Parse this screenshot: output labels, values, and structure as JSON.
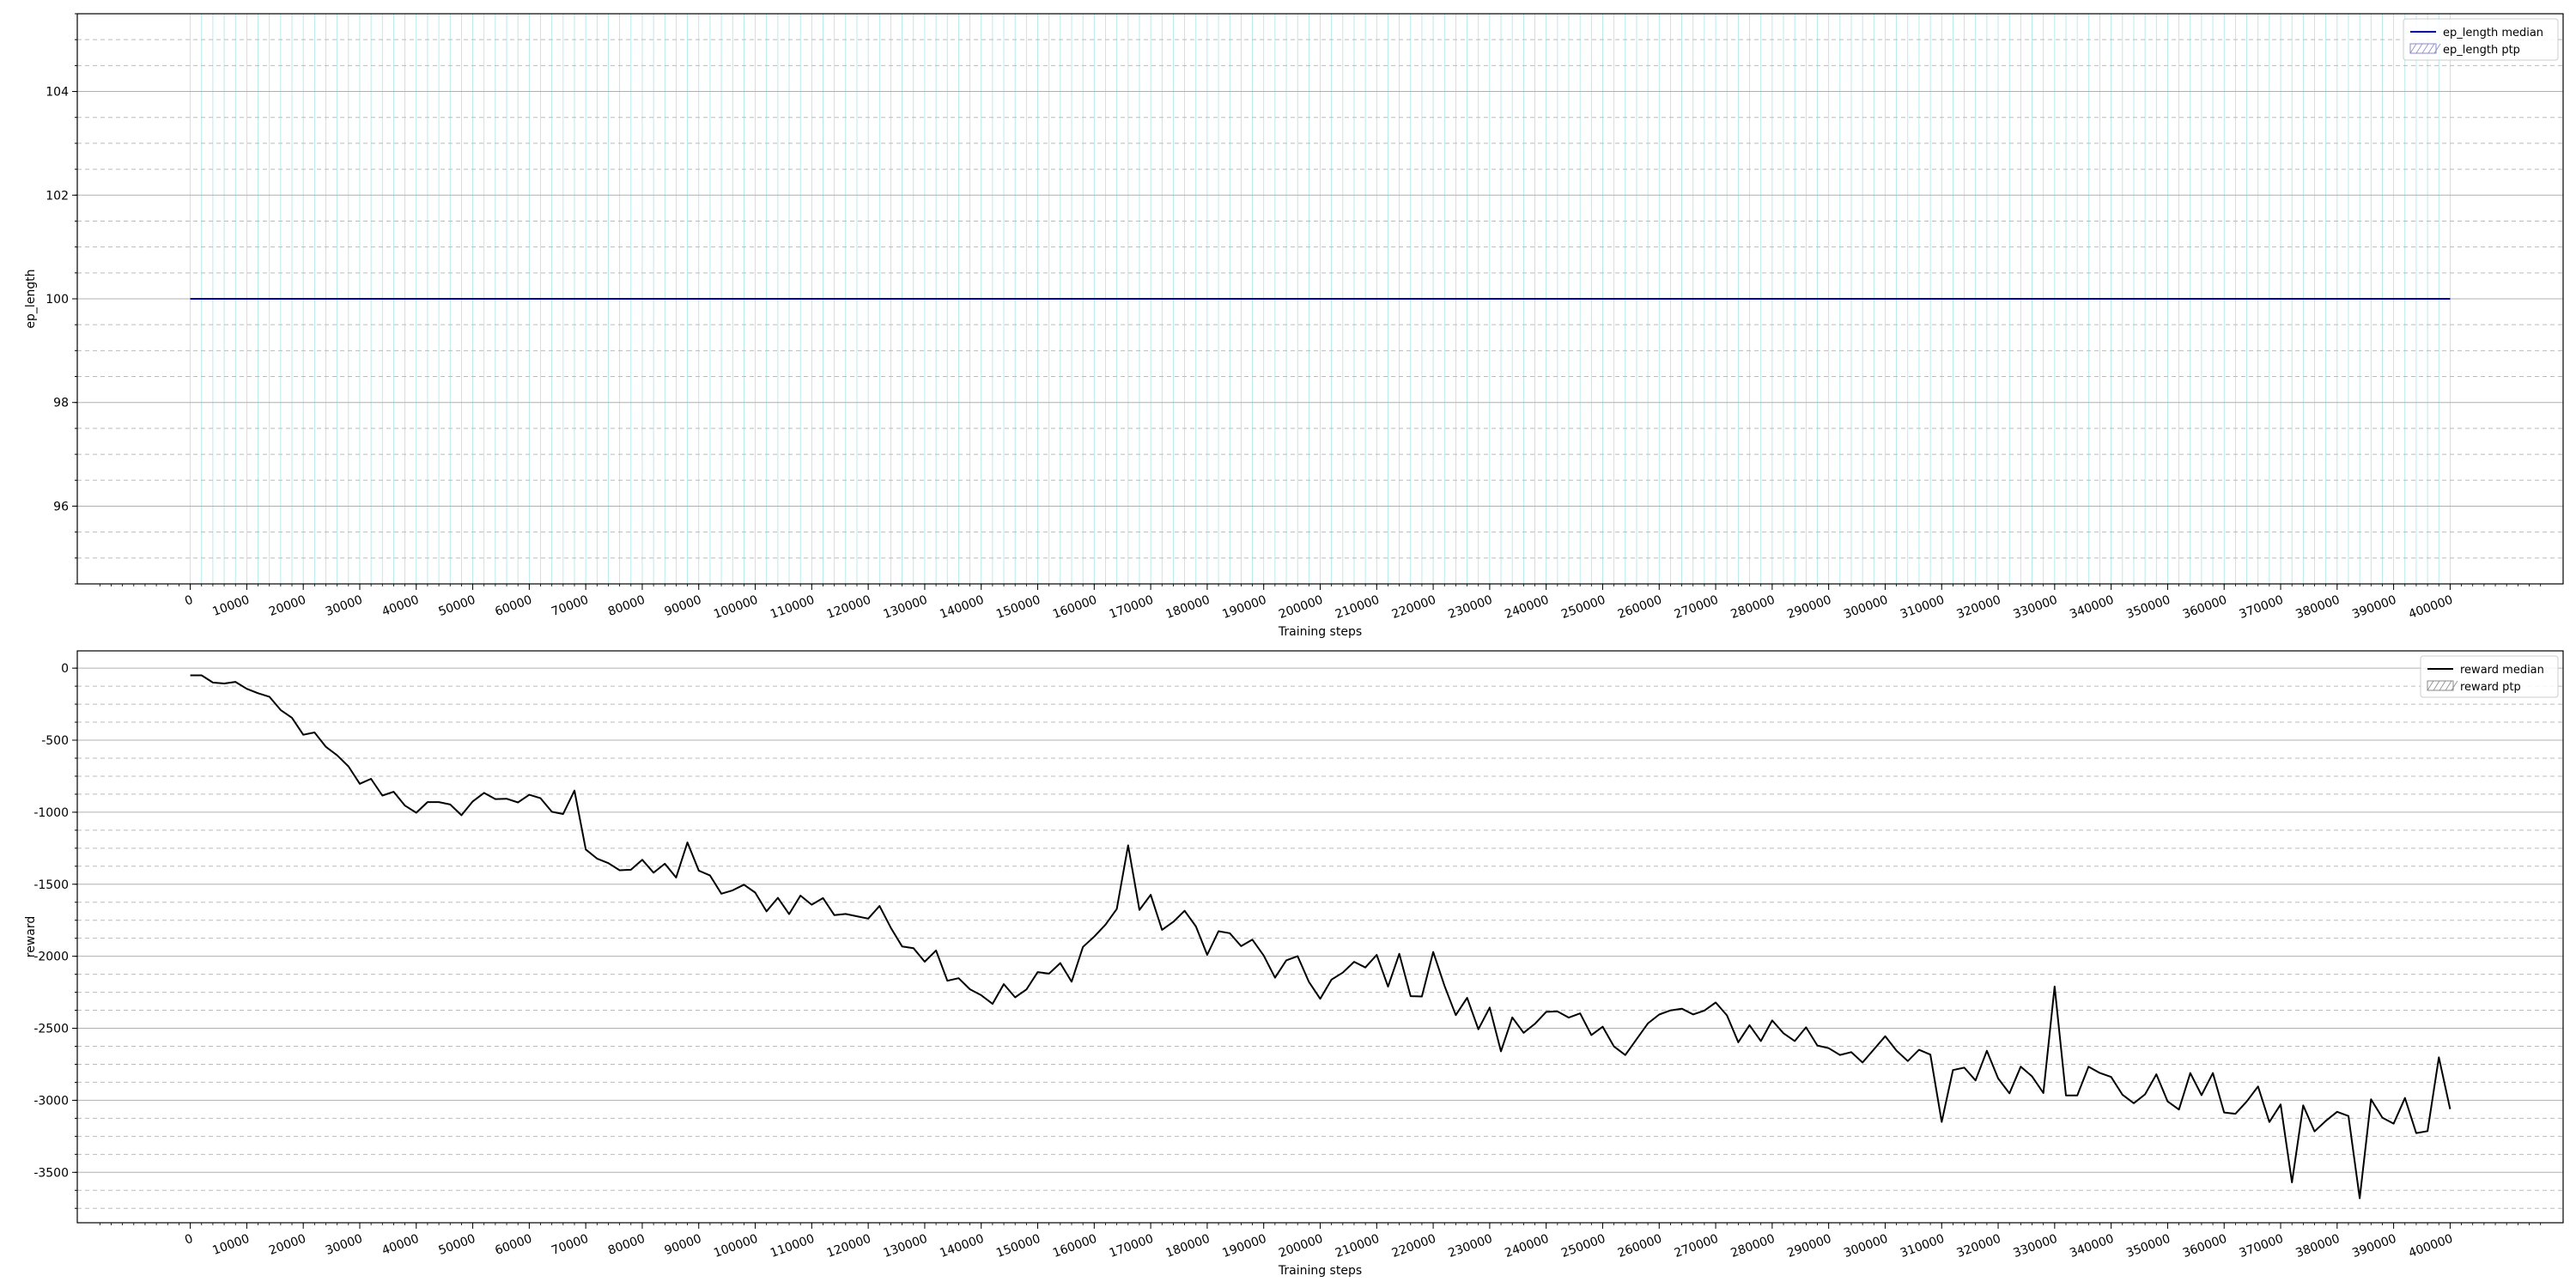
{
  "chart_data": [
    {
      "type": "line",
      "title": "",
      "xlabel": "Training steps",
      "ylabel": "ep_length",
      "xlim": [
        -20000,
        420000
      ],
      "ylim": [
        94.5,
        105.5
      ],
      "xticks": [
        0,
        10000,
        20000,
        30000,
        40000,
        50000,
        60000,
        70000,
        80000,
        90000,
        100000,
        110000,
        120000,
        130000,
        140000,
        150000,
        160000,
        170000,
        180000,
        190000,
        200000,
        210000,
        220000,
        230000,
        240000,
        250000,
        260000,
        270000,
        280000,
        290000,
        300000,
        310000,
        320000,
        330000,
        340000,
        350000,
        360000,
        370000,
        380000,
        390000,
        400000
      ],
      "yticks": [
        96,
        98,
        100,
        102,
        104
      ],
      "grid": true,
      "legend_position": "top-right",
      "legend": [
        "ep_length median",
        "ep_length ptp"
      ],
      "series": [
        {
          "name": "ep_length median",
          "color": "#0000aa",
          "x": [
            0,
            400000
          ],
          "y": [
            100,
            100
          ]
        },
        {
          "name": "ep_length ptp",
          "color": "#8888cc",
          "band": [
            100,
            100
          ],
          "x_range": [
            0,
            400000
          ]
        }
      ],
      "log_step_spacing": 2000
    },
    {
      "type": "line",
      "title": "",
      "xlabel": "Training steps",
      "ylabel": "reward",
      "xlim": [
        -20000,
        420000
      ],
      "ylim": [
        -3850,
        120
      ],
      "xticks": [
        0,
        10000,
        20000,
        30000,
        40000,
        50000,
        60000,
        70000,
        80000,
        90000,
        100000,
        110000,
        120000,
        130000,
        140000,
        150000,
        160000,
        170000,
        180000,
        190000,
        200000,
        210000,
        220000,
        230000,
        240000,
        250000,
        260000,
        270000,
        280000,
        290000,
        300000,
        310000,
        320000,
        330000,
        340000,
        350000,
        360000,
        370000,
        380000,
        390000,
        400000
      ],
      "yticks": [
        0,
        -500,
        -1000,
        -1500,
        -2000,
        -2500,
        -3000,
        -3500
      ],
      "grid": true,
      "legend_position": "top-right",
      "legend": [
        "reward median",
        "reward ptp"
      ],
      "series": [
        {
          "name": "reward median",
          "color": "#000000",
          "x_start": 0,
          "x_step": 2000,
          "trend": [
            [
              0,
              -50
            ],
            [
              2000,
              -50
            ],
            [
              4000,
              -100
            ],
            [
              10000,
              -120
            ],
            [
              14000,
              -260
            ],
            [
              20000,
              -420
            ],
            [
              26000,
              -650
            ],
            [
              30000,
              -780
            ],
            [
              36000,
              -870
            ],
            [
              40000,
              -960
            ],
            [
              46000,
              -1000
            ],
            [
              50000,
              -920
            ],
            [
              56000,
              -870
            ],
            [
              60000,
              -950
            ],
            [
              66000,
              -1000
            ],
            [
              70000,
              -1200
            ],
            [
              76000,
              -1380
            ],
            [
              80000,
              -1420
            ],
            [
              86000,
              -1400
            ],
            [
              90000,
              -1480
            ],
            [
              96000,
              -1550
            ],
            [
              100000,
              -1600
            ],
            [
              106000,
              -1620
            ],
            [
              110000,
              -1620
            ],
            [
              116000,
              -1680
            ],
            [
              120000,
              -1720
            ],
            [
              126000,
              -1820
            ],
            [
              130000,
              -1950
            ],
            [
              136000,
              -2100
            ],
            [
              140000,
              -2250
            ],
            [
              146000,
              -2280
            ],
            [
              150000,
              -2200
            ],
            [
              156000,
              -2050
            ],
            [
              160000,
              -1850
            ],
            [
              166000,
              -1650
            ],
            [
              170000,
              -1700
            ],
            [
              176000,
              -1800
            ],
            [
              180000,
              -1850
            ],
            [
              186000,
              -1900
            ],
            [
              190000,
              -2050
            ],
            [
              196000,
              -2150
            ],
            [
              200000,
              -2200
            ],
            [
              206000,
              -2150
            ],
            [
              210000,
              -2050
            ],
            [
              216000,
              -2150
            ],
            [
              220000,
              -2250
            ],
            [
              226000,
              -2400
            ],
            [
              230000,
              -2450
            ],
            [
              236000,
              -2380
            ],
            [
              240000,
              -2450
            ],
            [
              246000,
              -2550
            ],
            [
              250000,
              -2600
            ],
            [
              256000,
              -2500
            ],
            [
              260000,
              -2450
            ],
            [
              266000,
              -2400
            ],
            [
              270000,
              -2450
            ],
            [
              276000,
              -2500
            ],
            [
              280000,
              -2500
            ],
            [
              286000,
              -2550
            ],
            [
              290000,
              -2600
            ],
            [
              296000,
              -2620
            ],
            [
              300000,
              -2700
            ],
            [
              306000,
              -2750
            ],
            [
              310000,
              -2800
            ],
            [
              316000,
              -2750
            ],
            [
              320000,
              -2800
            ],
            [
              326000,
              -2800
            ],
            [
              330000,
              -2850
            ],
            [
              336000,
              -2850
            ],
            [
              340000,
              -2900
            ],
            [
              346000,
              -2950
            ],
            [
              350000,
              -2950
            ],
            [
              356000,
              -2920
            ],
            [
              360000,
              -3000
            ],
            [
              366000,
              -3050
            ],
            [
              370000,
              -3100
            ],
            [
              376000,
              -3150
            ],
            [
              380000,
              -3150
            ],
            [
              386000,
              -3050
            ],
            [
              390000,
              -3050
            ],
            [
              396000,
              -3100
            ],
            [
              398000,
              -2700
            ],
            [
              400000,
              -3050
            ]
          ],
          "noise_amplitude": 110,
          "extremes": [
            {
              "x": 68000,
              "y": -850
            },
            {
              "x": 88000,
              "y": -1210
            },
            {
              "x": 145000,
              "y": -2560
            },
            {
              "x": 166000,
              "y": -1230
            },
            {
              "x": 220000,
              "y": -1970
            },
            {
              "x": 232000,
              "y": -2660
            },
            {
              "x": 310000,
              "y": -3150
            },
            {
              "x": 330000,
              "y": -2210
            },
            {
              "x": 372000,
              "y": -3570
            },
            {
              "x": 384000,
              "y": -3680
            },
            {
              "x": 399000,
              "y": -2680
            }
          ]
        },
        {
          "name": "reward ptp",
          "color": "#888888",
          "band": "equal to median"
        }
      ]
    }
  ]
}
